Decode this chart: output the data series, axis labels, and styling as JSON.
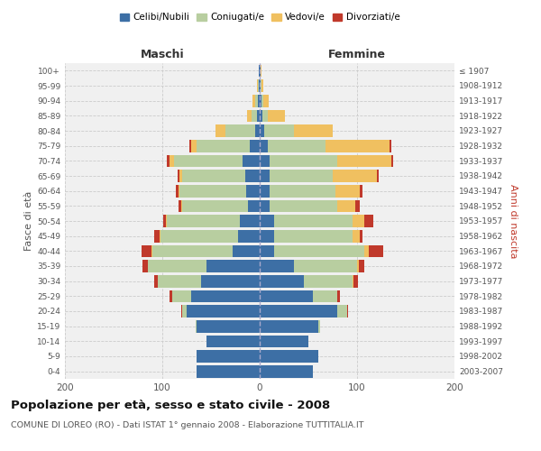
{
  "age_groups": [
    "0-4",
    "5-9",
    "10-14",
    "15-19",
    "20-24",
    "25-29",
    "30-34",
    "35-39",
    "40-44",
    "45-49",
    "50-54",
    "55-59",
    "60-64",
    "65-69",
    "70-74",
    "75-79",
    "80-84",
    "85-89",
    "90-94",
    "95-99",
    "100+"
  ],
  "birth_years": [
    "2003-2007",
    "1998-2002",
    "1993-1997",
    "1988-1992",
    "1983-1987",
    "1978-1982",
    "1973-1977",
    "1968-1972",
    "1963-1967",
    "1958-1962",
    "1953-1957",
    "1948-1952",
    "1943-1947",
    "1938-1942",
    "1933-1937",
    "1928-1932",
    "1923-1927",
    "1918-1922",
    "1913-1917",
    "1908-1912",
    "≤ 1907"
  ],
  "male": {
    "celibi": [
      65,
      65,
      55,
      65,
      75,
      70,
      60,
      55,
      28,
      22,
      20,
      12,
      14,
      15,
      18,
      10,
      5,
      3,
      2,
      1,
      1
    ],
    "coniugati": [
      0,
      0,
      0,
      1,
      5,
      20,
      45,
      60,
      82,
      80,
      75,
      68,
      68,
      65,
      70,
      55,
      30,
      5,
      3,
      1,
      0
    ],
    "vedovi": [
      0,
      0,
      0,
      0,
      0,
      0,
      0,
      0,
      1,
      1,
      1,
      1,
      1,
      2,
      5,
      5,
      10,
      5,
      2,
      1,
      0
    ],
    "divorziati": [
      0,
      0,
      0,
      0,
      1,
      3,
      3,
      5,
      10,
      5,
      3,
      2,
      3,
      2,
      2,
      2,
      0,
      0,
      0,
      0,
      0
    ]
  },
  "female": {
    "nubili": [
      55,
      60,
      50,
      60,
      80,
      55,
      45,
      35,
      15,
      15,
      15,
      10,
      10,
      10,
      10,
      8,
      5,
      3,
      2,
      1,
      1
    ],
    "coniugate": [
      0,
      0,
      0,
      2,
      10,
      25,
      50,
      65,
      92,
      80,
      80,
      70,
      68,
      65,
      70,
      60,
      30,
      5,
      2,
      1,
      0
    ],
    "vedove": [
      0,
      0,
      0,
      0,
      0,
      0,
      1,
      2,
      5,
      8,
      12,
      18,
      25,
      45,
      55,
      65,
      40,
      18,
      5,
      2,
      1
    ],
    "divorziate": [
      0,
      0,
      0,
      0,
      1,
      2,
      5,
      5,
      15,
      3,
      10,
      5,
      3,
      2,
      2,
      2,
      0,
      0,
      0,
      0,
      0
    ]
  },
  "colors": {
    "celibi": "#3d6fa5",
    "coniugati": "#b8cea0",
    "vedovi": "#f0c060",
    "divorziati": "#c0392b"
  },
  "title": "Popolazione per età, sesso e stato civile - 2008",
  "subtitle": "COMUNE DI LOREO (RO) - Dati ISTAT 1° gennaio 2008 - Elaborazione TUTTITALIA.IT",
  "xlabel_left": "Maschi",
  "xlabel_right": "Femmine",
  "ylabel_left": "Fasce di età",
  "ylabel_right": "Anni di nascita",
  "xlim": 200,
  "bg_color": "#ffffff",
  "plot_bg": "#f0f0f0",
  "grid_color": "#cccccc"
}
